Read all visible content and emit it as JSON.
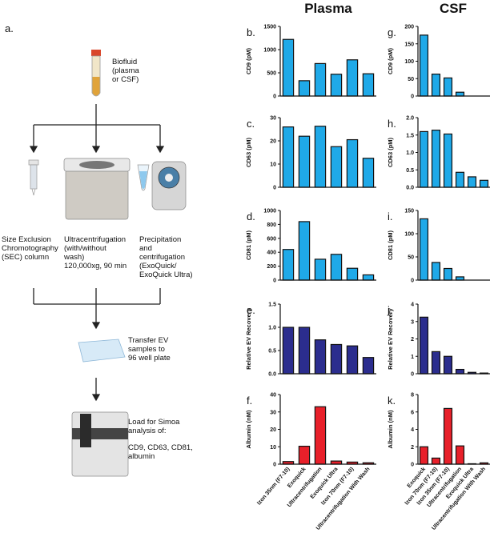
{
  "panel_a": {
    "label": "a.",
    "biofluid": [
      "Biofluid",
      "(plasma",
      "or CSF)"
    ],
    "sec": [
      "Size Exclusion",
      "Chromotography",
      "(SEC) column"
    ],
    "uc": [
      "Ultracentrifugation",
      "(with/without",
      "wash)",
      "120,000xg, 90 min"
    ],
    "precip": [
      "Precipitation",
      "and",
      "centrifugation",
      "(ExoQuick/",
      "ExoQuick Ultra)"
    ],
    "transfer": [
      "Transfer EV",
      "samples to",
      "96 well plate"
    ],
    "load": [
      "Load for Simoa",
      "analysis of:"
    ],
    "targets": [
      "CD9, CD63, CD81,",
      "albumin"
    ]
  },
  "column_titles": [
    "Plasma",
    "CSF"
  ],
  "chart_data": [
    {
      "type": "bar",
      "panel_label": "b.",
      "ylabel": "CD9 (pM)",
      "color": "#1fa9e8",
      "values": [
        1220,
        330,
        700,
        470,
        780,
        480
      ],
      "ylim": [
        0,
        1500
      ],
      "yticks": [
        0,
        500,
        1000,
        1500
      ]
    },
    {
      "type": "bar",
      "panel_label": "c.",
      "ylabel": "CD63 (pM)",
      "color": "#1fa9e8",
      "values": [
        26,
        22,
        26.3,
        17.5,
        20.5,
        12.5
      ],
      "ylim": [
        0,
        30
      ],
      "yticks": [
        0,
        10,
        20,
        30
      ]
    },
    {
      "type": "bar",
      "panel_label": "d.",
      "ylabel": "CD81 (pM)",
      "color": "#1fa9e8",
      "values": [
        440,
        840,
        300,
        370,
        170,
        75
      ],
      "ylim": [
        0,
        1000
      ],
      "yticks": [
        0,
        200,
        400,
        600,
        800,
        1000
      ]
    },
    {
      "type": "bar",
      "panel_label": "e.",
      "ylabel": "Relative EV Recovery",
      "color": "#2b2d8e",
      "values": [
        1.0,
        1.0,
        0.73,
        0.63,
        0.6,
        0.35
      ],
      "ylim": [
        0,
        1.5
      ],
      "yticks": [
        {
          "value": 0,
          "label": "0.0"
        },
        {
          "value": 0.5,
          "label": "0.5"
        },
        {
          "value": 1,
          "label": "1.0"
        },
        {
          "value": 1.5,
          "label": "1.5"
        }
      ]
    },
    {
      "type": "bar",
      "panel_label": "f.",
      "ylabel": "Albumin (nM)",
      "color": "#e8202a",
      "categories": [
        "Izon 35nm (F7-10)",
        "Exoquick",
        "Ultracentrifugation",
        "Exoquick Ultra",
        "Izon 70nm (F7-10)",
        "Ultracentrifugation With Wash"
      ],
      "values": [
        1.5,
        10.3,
        33,
        1.8,
        1.2,
        0.8
      ],
      "ylim": [
        0,
        40
      ],
      "yticks": [
        0,
        10,
        20,
        30,
        40
      ]
    },
    {
      "type": "bar",
      "panel_label": "g.",
      "ylabel": "CD9 (pM)",
      "color": "#1fa9e8",
      "values": [
        175,
        63,
        52,
        11,
        0,
        0
      ],
      "ylim": [
        0,
        200
      ],
      "yticks": [
        0,
        50,
        100,
        150,
        200
      ]
    },
    {
      "type": "bar",
      "panel_label": "h.",
      "ylabel": "CD63 (pM)",
      "color": "#1fa9e8",
      "values": [
        1.6,
        1.64,
        1.53,
        0.43,
        0.3,
        0.2
      ],
      "ylim": [
        0,
        2
      ],
      "yticks": [
        {
          "value": 0,
          "label": "0.0"
        },
        {
          "value": 0.5,
          "label": "0.5"
        },
        {
          "value": 1,
          "label": "1.0"
        },
        {
          "value": 1.5,
          "label": "1.5"
        },
        {
          "value": 2,
          "label": "2.0"
        }
      ]
    },
    {
      "type": "bar",
      "panel_label": "i.",
      "ylabel": "CD81 (pM)",
      "color": "#1fa9e8",
      "values": [
        132,
        38,
        25,
        7,
        0,
        0
      ],
      "ylim": [
        0,
        150
      ],
      "yticks": [
        0,
        50,
        100,
        150
      ]
    },
    {
      "type": "bar",
      "panel_label": "j.",
      "ylabel": "Relative EV Recovery",
      "color": "#2b2d8e",
      "values": [
        3.25,
        1.27,
        1.0,
        0.25,
        0.08,
        0.04
      ],
      "ylim": [
        0,
        4
      ],
      "yticks": [
        0,
        1,
        2,
        3,
        4
      ]
    },
    {
      "type": "bar",
      "panel_label": "k.",
      "ylabel": "Albumin (nM)",
      "color": "#e8202a",
      "categories": [
        "Exoquick",
        "Izon 70nm (F7-10)",
        "Izon 35nm (F7-10)",
        "Ultracentrifugation",
        "Exoquick Ultra",
        "Ultracentrifugation With Wash"
      ],
      "values": [
        2.0,
        0.7,
        6.4,
        2.1,
        0.05,
        0.15
      ],
      "ylim": [
        0,
        8
      ],
      "yticks": [
        0,
        2,
        4,
        6,
        8
      ]
    }
  ]
}
